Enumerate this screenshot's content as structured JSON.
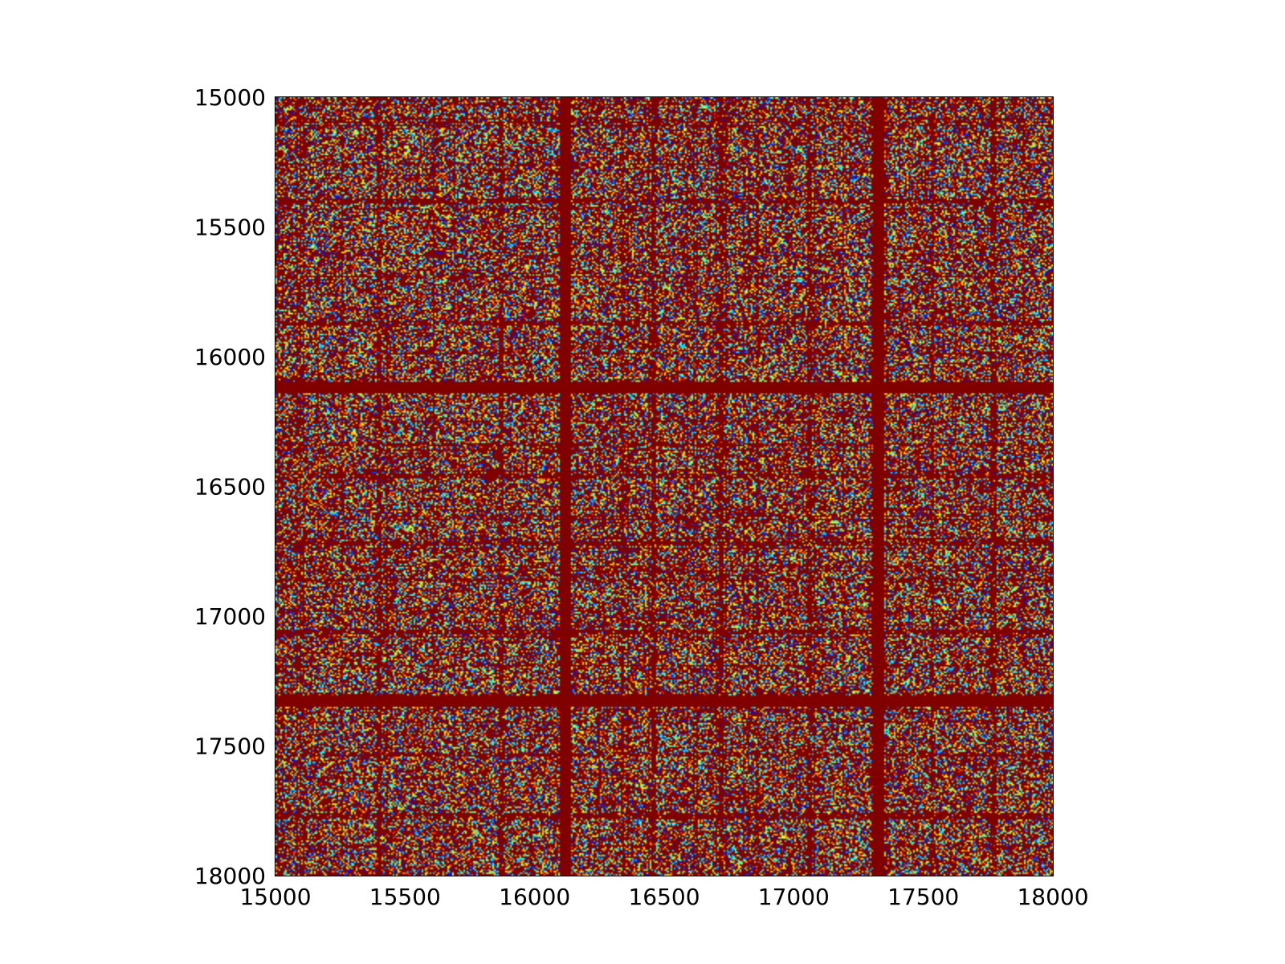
{
  "chart_data": {
    "type": "heatmap",
    "title": "",
    "xlabel": "",
    "ylabel": "",
    "xlim": [
      15000,
      18000
    ],
    "ylim": [
      15000,
      18000
    ],
    "y_axis_inverted": true,
    "x_ticks": [
      15000,
      15500,
      16000,
      16500,
      17000,
      17500,
      18000
    ],
    "y_ticks": [
      15000,
      15500,
      16000,
      16500,
      17000,
      17500,
      18000
    ],
    "x_tick_labels": [
      "15000",
      "15500",
      "16000",
      "16500",
      "17000",
      "17500",
      "18000"
    ],
    "y_tick_labels": [
      "15000",
      "15500",
      "16000",
      "16500",
      "17000",
      "17500",
      "18000"
    ],
    "colormap": "jet",
    "dominant_color": "#800000",
    "strong_band_positions": [
      16120,
      17330
    ],
    "medium_band_positions": [
      15400,
      15870,
      16460,
      16720,
      17060,
      17770
    ],
    "grid": false,
    "legend": "none"
  }
}
